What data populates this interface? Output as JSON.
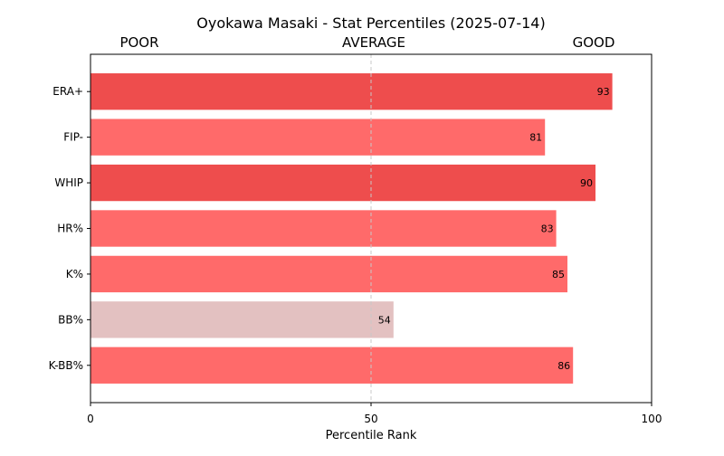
{
  "chart_data": {
    "type": "bar",
    "orientation": "horizontal",
    "title": "Oyokawa Masaki - Stat Percentiles (2025-07-14)",
    "xlabel": "Percentile Rank",
    "ylabel": "",
    "xlim": [
      0,
      100
    ],
    "x_ticks": [
      "0",
      "50",
      "100"
    ],
    "x_tick_values": [
      0,
      50,
      100
    ],
    "reference_line": 50,
    "zone_labels": [
      "POOR",
      "AVERAGE",
      "GOOD"
    ],
    "zone_label_values": [
      10,
      50,
      90
    ],
    "categories": [
      "ERA+",
      "FIP-",
      "WHIP",
      "HR%",
      "K%",
      "BB%",
      "K-BB%"
    ],
    "values": [
      93,
      81,
      90,
      83,
      85,
      54,
      86
    ],
    "bar_colors": [
      "#ee4d4d",
      "#ff6a6a",
      "#ee4d4d",
      "#ff6a6a",
      "#ff6a6a",
      "#e3c1c1",
      "#ff6a6a"
    ],
    "grid": false,
    "legend": "none"
  }
}
